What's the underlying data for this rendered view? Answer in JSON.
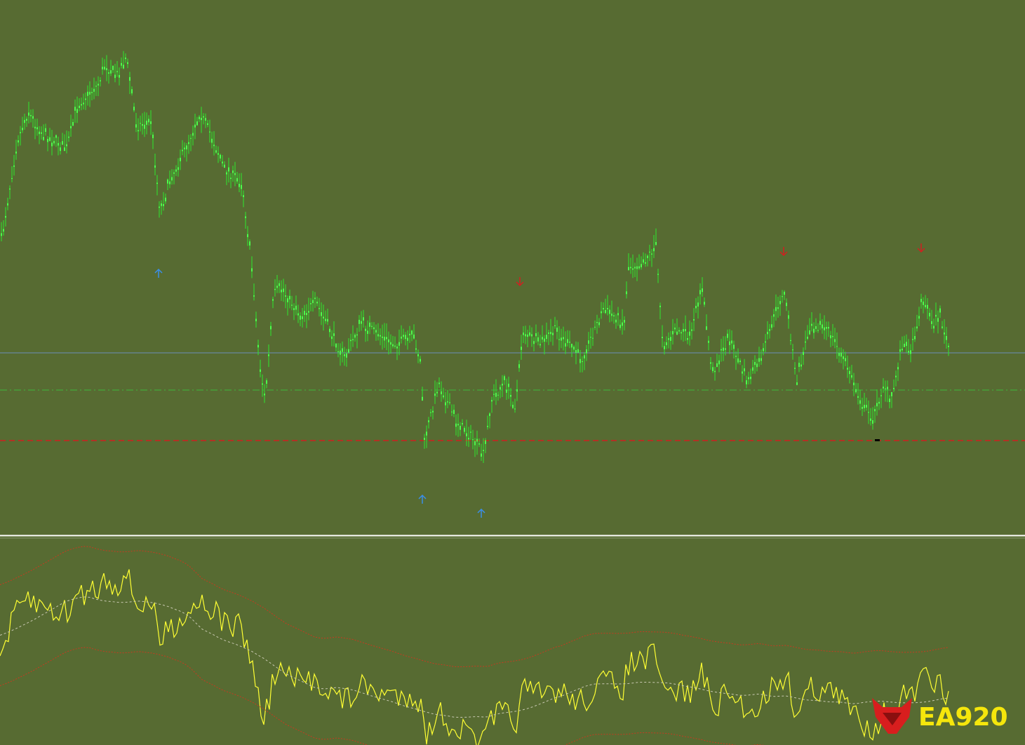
{
  "watermark": {
    "text": "EA920"
  }
}
